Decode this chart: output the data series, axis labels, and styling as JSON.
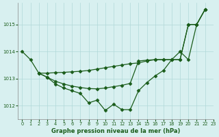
{
  "xlabel": "Graphe pression niveau de la mer (hPa)",
  "background_color": "#d8f0f0",
  "grid_color": "#b0d8d8",
  "line_color": "#1a5c1a",
  "ylim": [
    1011.5,
    1015.8
  ],
  "xlim": [
    -0.5,
    23.0
  ],
  "yticks": [
    1012,
    1013,
    1014,
    1015
  ],
  "xticks": [
    0,
    1,
    2,
    3,
    4,
    5,
    6,
    7,
    8,
    9,
    10,
    11,
    12,
    13,
    14,
    15,
    16,
    17,
    18,
    19,
    20,
    21,
    22,
    23
  ],
  "line1_x": [
    0,
    1,
    2,
    3,
    4,
    5,
    6,
    7,
    8,
    9,
    10,
    11,
    12,
    13,
    14,
    15,
    16,
    17,
    18,
    19,
    20,
    21,
    22
  ],
  "line1_y": [
    1014.0,
    1013.7,
    1013.2,
    1013.05,
    1012.8,
    1012.65,
    1012.55,
    1012.45,
    1012.1,
    1012.2,
    1011.82,
    1012.05,
    1011.85,
    1011.85,
    1012.55,
    1012.85,
    1013.1,
    1013.3,
    1013.7,
    1014.0,
    1013.7,
    1015.0,
    1015.55
  ],
  "line2_x": [
    2,
    3,
    4,
    5,
    6,
    7,
    8,
    9,
    10,
    11,
    12,
    13,
    14,
    15,
    16,
    17,
    18,
    19,
    20,
    21,
    22
  ],
  "line2_y": [
    1013.2,
    1013.2,
    1013.22,
    1013.23,
    1013.25,
    1013.27,
    1013.3,
    1013.35,
    1013.4,
    1013.45,
    1013.5,
    1013.55,
    1013.58,
    1013.65,
    1013.7,
    1013.7,
    1013.7,
    1013.7,
    1015.0,
    1015.0,
    1015.55
  ],
  "line3_x": [
    2,
    3,
    4,
    5,
    6,
    7,
    8,
    9,
    10,
    11,
    12,
    13,
    14,
    15,
    16,
    17,
    18,
    19,
    20,
    21,
    22
  ],
  "line3_y": [
    1013.2,
    1013.05,
    1012.9,
    1012.8,
    1012.72,
    1012.67,
    1012.63,
    1012.62,
    1012.65,
    1012.7,
    1012.75,
    1012.82,
    1013.65,
    1013.68,
    1013.7,
    1013.7,
    1013.7,
    1013.7,
    1015.0,
    1015.0,
    1015.55
  ]
}
